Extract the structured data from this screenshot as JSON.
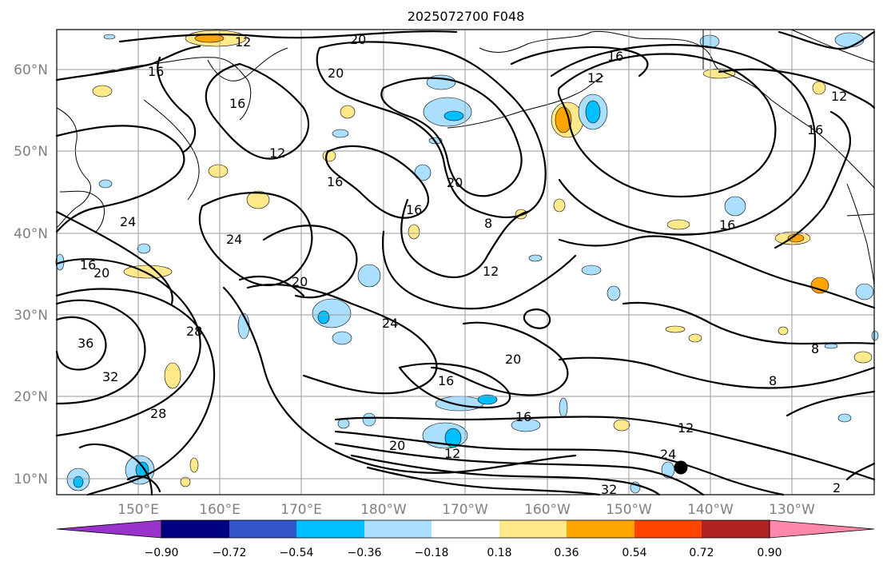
{
  "map": {
    "title": "2025072700 F048",
    "lat_labels": [
      "60°N",
      "50°N",
      "40°N",
      "30°N",
      "20°N",
      "10°N"
    ],
    "lon_labels": [
      "150°E",
      "160°E",
      "170°E",
      "180°W",
      "170°W",
      "160°W",
      "150°W",
      "140°W",
      "130°W"
    ],
    "contour_labels": [
      "12",
      "16",
      "20",
      "16",
      "16",
      "12",
      "12",
      "16",
      "20",
      "12",
      "16",
      "20",
      "8",
      "16",
      "24",
      "16",
      "24",
      "20",
      "16",
      "12",
      "20",
      "24",
      "36",
      "28",
      "32",
      "28",
      "20",
      "16",
      "20",
      "16",
      "12",
      "24",
      "32",
      "8",
      "8",
      "12",
      "2"
    ],
    "storm_marker": "typhoon-position-dot"
  },
  "colorbar": {
    "tick_labels": [
      "−0.90",
      "−0.72",
      "−0.54",
      "−0.36",
      "−0.18",
      "0.18",
      "0.36",
      "0.54",
      "0.72",
      "0.90"
    ],
    "colors": [
      "#9933cc",
      "#000080",
      "#3355cc",
      "#00bfff",
      "#aadfff",
      "#ffffff",
      "#ffe98a",
      "#ffa500",
      "#ff4500",
      "#b22222",
      "#ff88aa"
    ]
  }
}
